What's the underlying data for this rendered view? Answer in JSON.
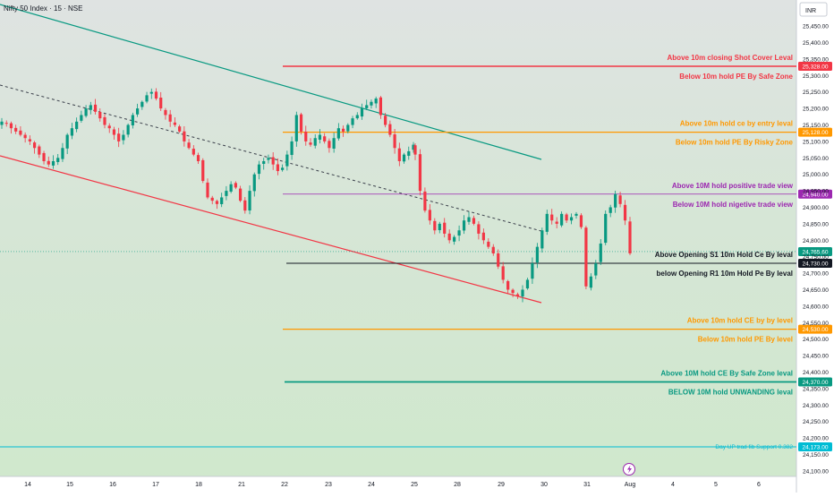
{
  "header": {
    "title": "Nifty 50 Index · 15 · NSE",
    "currency": "INR"
  },
  "colors": {
    "red": "#f23645",
    "orange": "#ff9800",
    "purple": "#9c27b0",
    "black": "#131722",
    "teal": "#089981",
    "cyan": "#00bcd4",
    "up": "#089981",
    "down": "#f23645"
  },
  "chart_data": {
    "type": "candlestick",
    "title": "Nifty 50 Index · 15 · NSE",
    "ylim": [
      24080,
      25500
    ],
    "x_ticks": [
      "14",
      "15",
      "16",
      "17",
      "18",
      "21",
      "22",
      "23",
      "24",
      "25",
      "28",
      "29",
      "30",
      "31",
      "Aug",
      "4",
      "5",
      "6"
    ],
    "y_ticks": [
      24100,
      24150,
      24200,
      24250,
      24300,
      24350,
      24400,
      24450,
      24500,
      24550,
      24600,
      24650,
      24700,
      24750,
      24800,
      24850,
      24900,
      24950,
      25000,
      25050,
      25100,
      25150,
      25200,
      25250,
      25300,
      25350,
      25400,
      25450
    ],
    "series": [
      {
        "values": [
          25160,
          25155,
          25140,
          25130,
          25120,
          25110,
          25100,
          25080,
          25060,
          25040,
          25030,
          25040,
          25050,
          25080,
          25120,
          25140,
          25160,
          25180,
          25200,
          25210,
          25190,
          25170,
          25150,
          25140,
          25120,
          25100,
          25120,
          25150,
          25180,
          25200,
          25220,
          25240,
          25250,
          25230,
          25200,
          25180,
          25160,
          25150,
          25130,
          25100,
          25080,
          25060,
          25040,
          24980,
          24930,
          24920,
          24910,
          24930,
          24950,
          24970,
          24960,
          24920,
          24890,
          24950,
          25000,
          25030,
          25040,
          25050,
          25030,
          25010,
          25020,
          25060,
          25100,
          25180,
          25130,
          25100,
          25090,
          25110,
          25120,
          25100,
          25080,
          25110,
          25140,
          25130,
          25150,
          25170,
          25180,
          25200,
          25210,
          25220,
          25230,
          25180,
          25150,
          25120,
          25080,
          25040,
          25060,
          25070,
          25090,
          25060,
          24950,
          24890,
          24860,
          24830,
          24850,
          24820,
          24800,
          24810,
          24830,
          24860,
          24870,
          24850,
          24820,
          24800,
          24780,
          24760,
          24720,
          24680,
          24650,
          24640,
          24630,
          24650,
          24680,
          24730,
          24780,
          24830,
          24880,
          24860,
          24850,
          24880,
          24860,
          24870,
          24880,
          24840,
          24660,
          24690,
          24730,
          24790,
          24880,
          24900,
          24940,
          24910,
          24860,
          24760
        ]
      }
    ],
    "level_lines": [
      {
        "price": 25328,
        "price_label": "25,328.00",
        "color": "red",
        "label_above": "Above 10m closing Shot Cover Leval",
        "label_below": "Below 10m hold PE By Safe Zone"
      },
      {
        "price": 25128,
        "price_label": "25,128.00",
        "color": "orange",
        "label_above": "Above 10m hold ce by entry leval",
        "label_below": "Below 10m hold PE By Risky Zone"
      },
      {
        "price": 24940,
        "price_label": "24,940.00",
        "color": "purple",
        "label_above": "Above 10M hold positive trade view",
        "label_below": "Below 10M hold nigetive trade view"
      },
      {
        "price": 24730,
        "price_label": "24,730.00",
        "color": "black",
        "label_above": "Above Opening S1 10m Hold Ce By leval",
        "label_below": "below Opening R1 10m Hold Pe By leval"
      },
      {
        "price": 24530,
        "price_label": "24,530.00",
        "color": "orange",
        "label_above": "Above 10m hold CE by by level",
        "label_below": "Below 10m hold PE By level"
      },
      {
        "price": 24370,
        "price_label": "24,370.00",
        "color": "teal",
        "label_above": "Above 10M hold CE By Safe Zone leval",
        "label_below": "BELOW 10M hold UNWANDING leval"
      }
    ],
    "support_line": {
      "price": 24173,
      "price_label": "24,173.00",
      "label": "Day UP trad fib Support 0.382"
    },
    "last_price": {
      "price": 24765.6,
      "price_label": "24,765.60"
    }
  }
}
